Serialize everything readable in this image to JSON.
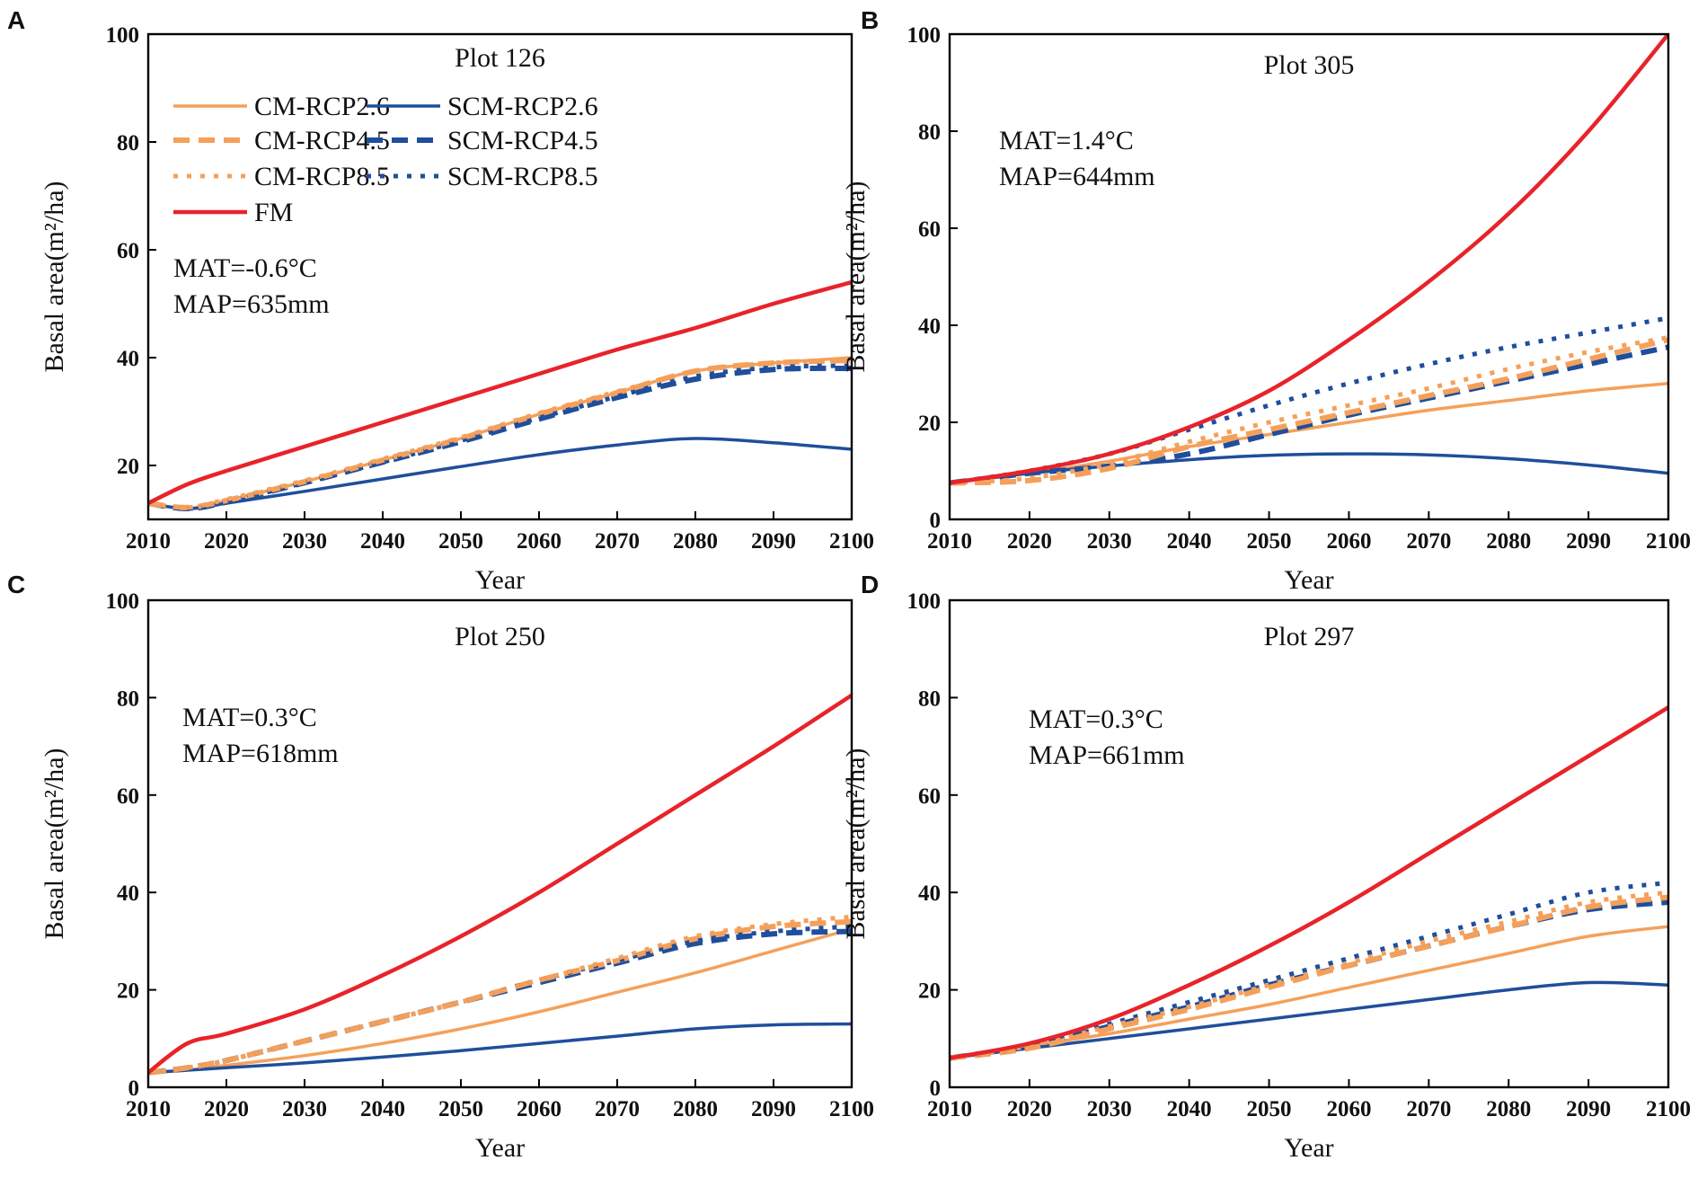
{
  "colors": {
    "cm": "#F5A05A",
    "scm": "#1F4E9C",
    "fm": "#E8232A"
  },
  "legend": [
    {
      "key": "cm26",
      "label": "CM-RCP2.6"
    },
    {
      "key": "scm26",
      "label": "SCM-RCP2.6"
    },
    {
      "key": "cm45",
      "label": "CM-RCP4.5"
    },
    {
      "key": "scm45",
      "label": "SCM-RCP4.5"
    },
    {
      "key": "cm85",
      "label": "CM-RCP8.5"
    },
    {
      "key": "scm85",
      "label": "SCM-RCP8.5"
    },
    {
      "key": "fm",
      "label": "FM"
    }
  ],
  "chart_data": [
    {
      "type": "line",
      "panel": "A",
      "title": "Plot 126",
      "annotations": [
        "MAT=-0.6°C",
        "MAP=635mm"
      ],
      "xlabel": "Year",
      "ylabel": "Basal area(m²/ha)",
      "xlim": [
        2010,
        2100
      ],
      "ylim": [
        10,
        100
      ],
      "xticks": [
        2010,
        2020,
        2030,
        2040,
        2050,
        2060,
        2070,
        2080,
        2090,
        2100
      ],
      "yticks": [
        20,
        40,
        60,
        80,
        100
      ],
      "x": [
        2010,
        2015,
        2020,
        2030,
        2040,
        2050,
        2060,
        2070,
        2080,
        2090,
        2100
      ],
      "series": [
        {
          "key": "cm26",
          "name": "CM-RCP2.6",
          "values": [
            13,
            12,
            13.5,
            17,
            21,
            25,
            29.5,
            33.5,
            37.5,
            39,
            40
          ]
        },
        {
          "key": "cm45",
          "name": "CM-RCP4.5",
          "values": [
            13,
            12.2,
            13.5,
            17,
            21,
            25,
            29.5,
            33.5,
            37.5,
            39,
            39.5
          ]
        },
        {
          "key": "cm85",
          "name": "CM-RCP8.5",
          "values": [
            13,
            12.2,
            13.7,
            17.2,
            21.2,
            25.2,
            29.7,
            33.7,
            37.5,
            39,
            39.5
          ]
        },
        {
          "key": "scm26",
          "name": "SCM-RCP2.6",
          "values": [
            13,
            12,
            13,
            15.2,
            17.5,
            19.8,
            22,
            23.8,
            25,
            24.2,
            23
          ]
        },
        {
          "key": "scm45",
          "name": "SCM-RCP4.5",
          "values": [
            13,
            12,
            13.2,
            16.8,
            20.6,
            24.4,
            28.6,
            32.6,
            36,
            37.8,
            38
          ]
        },
        {
          "key": "scm85",
          "name": "SCM-RCP8.5",
          "values": [
            13,
            12,
            13.2,
            16.8,
            20.6,
            24.6,
            28.8,
            32.8,
            36.5,
            38.2,
            38.5
          ]
        },
        {
          "key": "fm",
          "name": "FM",
          "values": [
            13,
            16.5,
            19,
            23.5,
            28,
            32.5,
            37,
            41.5,
            45.5,
            50,
            54
          ]
        }
      ]
    },
    {
      "type": "line",
      "panel": "B",
      "title": "Plot 305",
      "annotations": [
        "MAT=1.4°C",
        "MAP=644mm"
      ],
      "xlabel": "Year",
      "ylabel": "Basal area(m²/ha)",
      "xlim": [
        2010,
        2100
      ],
      "ylim": [
        0,
        100
      ],
      "xticks": [
        2010,
        2020,
        2030,
        2040,
        2050,
        2060,
        2070,
        2080,
        2090,
        2100
      ],
      "yticks": [
        0,
        20,
        40,
        60,
        80,
        100
      ],
      "x": [
        2010,
        2020,
        2030,
        2040,
        2050,
        2060,
        2070,
        2080,
        2090,
        2100
      ],
      "series": [
        {
          "key": "cm26",
          "name": "CM-RCP2.6",
          "values": [
            7.5,
            9.5,
            12,
            15,
            17.5,
            20,
            22.5,
            24.5,
            26.5,
            28
          ]
        },
        {
          "key": "cm45",
          "name": "CM-RCP4.5",
          "values": [
            7.5,
            8,
            10.5,
            15,
            18.5,
            22,
            25.5,
            29,
            33,
            37
          ]
        },
        {
          "key": "cm85",
          "name": "CM-RCP8.5",
          "values": [
            7.5,
            8.5,
            11.5,
            16,
            20,
            23.5,
            27,
            31,
            34.5,
            37.5
          ]
        },
        {
          "key": "scm26",
          "name": "SCM-RCP2.6",
          "values": [
            7.5,
            9.5,
            11,
            12.3,
            13.2,
            13.5,
            13.3,
            12.5,
            11.2,
            9.5
          ]
        },
        {
          "key": "scm45",
          "name": "SCM-RCP4.5",
          "values": [
            7.5,
            9.5,
            11,
            13.5,
            17.5,
            21.5,
            25,
            28.5,
            32,
            35.5
          ]
        },
        {
          "key": "scm85",
          "name": "SCM-RCP8.5",
          "values": [
            7.5,
            10,
            13.5,
            18.5,
            23.5,
            28,
            32,
            35.5,
            38.5,
            41.5
          ]
        },
        {
          "key": "fm",
          "name": "FM",
          "values": [
            7.5,
            10,
            13.5,
            19,
            26.5,
            37,
            49,
            63,
            80,
            100
          ]
        }
      ]
    },
    {
      "type": "line",
      "panel": "C",
      "title": "Plot 250",
      "annotations": [
        "MAT=0.3°C",
        "MAP=618mm"
      ],
      "xlabel": "Year",
      "ylabel": "Basal area(m²/ha)",
      "xlim": [
        2010,
        2100
      ],
      "ylim": [
        0,
        100
      ],
      "xticks": [
        2010,
        2020,
        2030,
        2040,
        2050,
        2060,
        2070,
        2080,
        2090,
        2100
      ],
      "yticks": [
        0,
        20,
        40,
        60,
        80,
        100
      ],
      "x": [
        2010,
        2015,
        2020,
        2030,
        2040,
        2050,
        2060,
        2070,
        2080,
        2090,
        2100
      ],
      "series": [
        {
          "key": "cm26",
          "name": "CM-RCP2.6",
          "values": [
            3,
            3.5,
            4.5,
            6.5,
            9,
            12,
            15.5,
            19.5,
            23.5,
            28,
            32.5
          ]
        },
        {
          "key": "cm45",
          "name": "CM-RCP4.5",
          "values": [
            3,
            4,
            5.5,
            9.5,
            13.5,
            17.5,
            22,
            26,
            30.5,
            33,
            34
          ]
        },
        {
          "key": "cm85",
          "name": "CM-RCP8.5",
          "values": [
            3,
            4,
            5.5,
            9.5,
            13.5,
            17.5,
            22,
            26.5,
            31,
            33.5,
            35
          ]
        },
        {
          "key": "scm26",
          "name": "SCM-RCP2.6",
          "values": [
            3,
            3.5,
            4,
            5,
            6.2,
            7.5,
            9,
            10.5,
            12,
            12.8,
            13
          ]
        },
        {
          "key": "scm45",
          "name": "SCM-RCP4.5",
          "values": [
            3,
            4,
            5.5,
            9.5,
            13.5,
            17.5,
            21.5,
            25.5,
            29.5,
            31.5,
            32
          ]
        },
        {
          "key": "scm85",
          "name": "SCM-RCP8.5",
          "values": [
            3,
            4,
            5.5,
            9.5,
            13.5,
            17.5,
            22,
            26,
            30,
            32,
            33
          ]
        },
        {
          "key": "fm",
          "name": "FM",
          "values": [
            3,
            9,
            11,
            16,
            23,
            31,
            40,
            50,
            60,
            70,
            80.5
          ]
        }
      ]
    },
    {
      "type": "line",
      "panel": "D",
      "title": "Plot 297",
      "annotations": [
        "MAT=0.3°C",
        "MAP=661mm"
      ],
      "xlabel": "Year",
      "ylabel": "Basal area(m²/ha)",
      "xlim": [
        2010,
        2100
      ],
      "ylim": [
        0,
        100
      ],
      "xticks": [
        2010,
        2020,
        2030,
        2040,
        2050,
        2060,
        2070,
        2080,
        2090,
        2100
      ],
      "yticks": [
        0,
        20,
        40,
        60,
        80,
        100
      ],
      "x": [
        2010,
        2020,
        2030,
        2040,
        2050,
        2060,
        2070,
        2080,
        2090,
        2100
      ],
      "series": [
        {
          "key": "cm26",
          "name": "CM-RCP2.6",
          "values": [
            6,
            8.5,
            11,
            14,
            17,
            20.5,
            24,
            27.5,
            31,
            33
          ]
        },
        {
          "key": "cm45",
          "name": "CM-RCP4.5",
          "values": [
            6,
            8,
            12,
            16,
            20.5,
            25,
            29,
            33,
            37,
            39
          ]
        },
        {
          "key": "cm85",
          "name": "CM-RCP8.5",
          "values": [
            6,
            8.5,
            12.5,
            16.5,
            21,
            25.5,
            30,
            34,
            38,
            40
          ]
        },
        {
          "key": "scm26",
          "name": "SCM-RCP2.6",
          "values": [
            6,
            8,
            10,
            12,
            14,
            16,
            18,
            20,
            21.5,
            21
          ]
        },
        {
          "key": "scm45",
          "name": "SCM-RCP4.5",
          "values": [
            6,
            8.5,
            12.5,
            16.5,
            21,
            25,
            29,
            33,
            36.5,
            38
          ]
        },
        {
          "key": "scm85",
          "name": "SCM-RCP8.5",
          "values": [
            6,
            8.5,
            13,
            17.5,
            22,
            26.5,
            31,
            35.5,
            40,
            42
          ]
        },
        {
          "key": "fm",
          "name": "FM",
          "values": [
            6,
            9,
            14,
            21,
            29,
            38,
            48,
            58,
            68,
            78
          ]
        }
      ]
    }
  ]
}
